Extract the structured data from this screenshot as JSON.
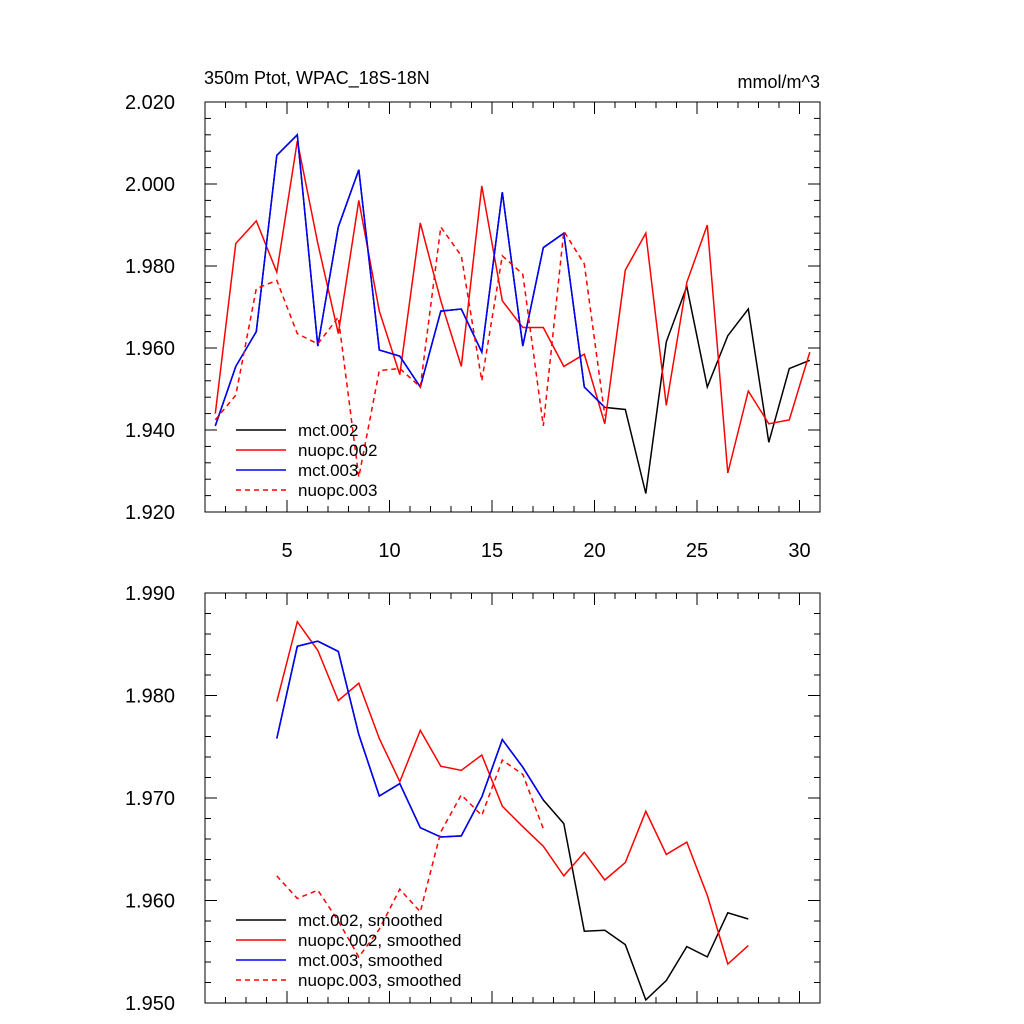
{
  "chart_data": [
    {
      "type": "line",
      "title": "350m Ptot, WPAC_18S-18N",
      "units": "mmol/m^3",
      "xlim": [
        1,
        31
      ],
      "ylim": [
        1.92,
        2.02
      ],
      "y_ticks": [
        "1.920",
        "1.940",
        "1.960",
        "1.980",
        "2.000",
        "2.020"
      ],
      "x_ticks": [
        "5",
        "10",
        "15",
        "20",
        "25",
        "30"
      ],
      "series": [
        {
          "name": "mct.002",
          "color": "#000000",
          "dash": false,
          "x": [
            1.5,
            2.5,
            3.5,
            4.5,
            5.5,
            6.5,
            7.5,
            8.5,
            9.5,
            10.5,
            11.5,
            12.5,
            13.5,
            14.5,
            15.5,
            16.5,
            17.5,
            18.5,
            19.5,
            20.5,
            21.5,
            22.5,
            23.5,
            24.5,
            25.5,
            26.5,
            27.5,
            28.5,
            29.5,
            30.5
          ],
          "values": [
            1.941,
            1.9555,
            1.964,
            2.007,
            2.012,
            1.9605,
            1.9895,
            2.0035,
            1.9595,
            1.958,
            1.9505,
            1.969,
            1.9695,
            1.959,
            1.998,
            1.9605,
            1.9845,
            1.988,
            1.9505,
            1.9455,
            1.945,
            1.9245,
            1.9615,
            1.975,
            1.9505,
            1.963,
            1.9695,
            1.937,
            1.955,
            1.957
          ]
        },
        {
          "name": "nuopc.002",
          "color": "#ff0000",
          "dash": false,
          "x": [
            1.5,
            2.5,
            3.5,
            4.5,
            5.5,
            6.5,
            7.5,
            8.5,
            9.5,
            10.5,
            11.5,
            12.5,
            13.5,
            14.5,
            15.5,
            16.5,
            17.5,
            18.5,
            19.5,
            20.5,
            21.5,
            22.5,
            23.5,
            24.5,
            25.5,
            26.5,
            27.5,
            28.5,
            29.5,
            30.5
          ],
          "values": [
            1.944,
            1.9855,
            1.991,
            1.9785,
            2.0105,
            1.9855,
            1.9635,
            1.996,
            1.969,
            1.9535,
            1.9905,
            1.9715,
            1.9555,
            1.9995,
            1.9715,
            1.965,
            1.965,
            1.9555,
            1.9585,
            1.9415,
            1.979,
            1.988,
            1.946,
            1.976,
            1.99,
            1.9295,
            1.9495,
            1.9415,
            1.9425,
            1.959
          ]
        },
        {
          "name": "mct.003",
          "color": "#0000ff",
          "dash": false,
          "x": [
            1.5,
            2.5,
            3.5,
            4.5,
            5.5,
            6.5,
            7.5,
            8.5,
            9.5,
            10.5,
            11.5,
            12.5,
            13.5,
            14.5,
            15.5,
            16.5,
            17.5,
            18.5,
            19.5,
            20.5
          ],
          "values": [
            1.941,
            1.9555,
            1.964,
            2.007,
            2.012,
            1.9605,
            1.9895,
            2.0035,
            1.9595,
            1.958,
            1.9505,
            1.969,
            1.9695,
            1.959,
            1.998,
            1.9605,
            1.9845,
            1.988,
            1.9505,
            1.9455
          ]
        },
        {
          "name": "nuopc.003",
          "color": "#ff0000",
          "dash": true,
          "x": [
            1.5,
            2.5,
            3.5,
            4.5,
            5.5,
            6.5,
            7.5,
            8.5,
            9.5,
            10.5,
            11.5,
            12.5,
            13.5,
            14.5,
            15.5,
            16.5,
            17.5,
            18.5,
            19.5,
            20.5
          ],
          "values": [
            1.9425,
            1.9485,
            1.9745,
            1.9765,
            1.9635,
            1.961,
            1.9675,
            1.9285,
            1.9545,
            1.955,
            1.9505,
            1.9895,
            1.9825,
            1.952,
            1.9825,
            1.978,
            1.941,
            1.9885,
            1.9805,
            1.9435
          ]
        }
      ],
      "legend_position": "bottom-left"
    },
    {
      "type": "line",
      "title": "",
      "xlim": [
        1,
        31
      ],
      "ylim": [
        1.95,
        1.99
      ],
      "y_ticks": [
        "1.950",
        "1.960",
        "1.970",
        "1.980",
        "1.990"
      ],
      "x_ticks": [],
      "series": [
        {
          "name": "mct.002, smoothed",
          "color": "#000000",
          "dash": false,
          "x": [
            4.5,
            5.5,
            6.5,
            7.5,
            8.5,
            9.5,
            10.5,
            11.5,
            12.5,
            13.5,
            14.5,
            15.5,
            16.5,
            17.5,
            18.5,
            19.5,
            20.5,
            21.5,
            22.5,
            23.5,
            24.5,
            25.5,
            26.5,
            27.5
          ],
          "values": [
            1.9758,
            1.9848,
            1.9853,
            1.9843,
            1.9762,
            1.9702,
            1.9714,
            1.9671,
            1.9662,
            1.9663,
            1.9701,
            1.9757,
            1.973,
            1.9698,
            1.9675,
            1.957,
            1.9571,
            1.9557,
            1.9503,
            1.9522,
            1.9555,
            1.9545,
            1.9588,
            1.9582
          ]
        },
        {
          "name": "nuopc.002, smoothed",
          "color": "#ff0000",
          "dash": false,
          "x": [
            4.5,
            5.5,
            6.5,
            7.5,
            8.5,
            9.5,
            10.5,
            11.5,
            12.5,
            13.5,
            14.5,
            15.5,
            16.5,
            17.5,
            18.5,
            19.5,
            20.5,
            21.5,
            22.5,
            23.5,
            24.5,
            25.5,
            26.5,
            27.5
          ],
          "values": [
            1.9794,
            1.9872,
            1.9844,
            1.9795,
            1.9812,
            1.9758,
            1.9716,
            1.9766,
            1.9731,
            1.9727,
            1.9742,
            1.9692,
            1.9672,
            1.9653,
            1.9624,
            1.9647,
            1.962,
            1.9637,
            1.9687,
            1.9645,
            1.9657,
            1.9605,
            1.9538,
            1.9556
          ]
        },
        {
          "name": "mct.003, smoothed",
          "color": "#0000ff",
          "dash": false,
          "x": [
            4.5,
            5.5,
            6.5,
            7.5,
            8.5,
            9.5,
            10.5,
            11.5,
            12.5,
            13.5,
            14.5,
            15.5,
            16.5,
            17.5
          ],
          "values": [
            1.9758,
            1.9848,
            1.9853,
            1.9843,
            1.9762,
            1.9702,
            1.9714,
            1.9671,
            1.9662,
            1.9663,
            1.9701,
            1.9757,
            1.973,
            1.9698
          ]
        },
        {
          "name": "nuopc.003, smoothed",
          "color": "#ff0000",
          "dash": true,
          "x": [
            4.5,
            5.5,
            6.5,
            7.5,
            8.5,
            9.5,
            10.5,
            11.5,
            12.5,
            13.5,
            14.5,
            15.5,
            16.5,
            17.5
          ],
          "values": [
            1.9624,
            1.9602,
            1.961,
            1.958,
            1.9545,
            1.9572,
            1.9611,
            1.9589,
            1.9667,
            1.9703,
            1.9683,
            1.9737,
            1.9723,
            1.967
          ]
        }
      ],
      "legend_position": "bottom-left"
    }
  ]
}
